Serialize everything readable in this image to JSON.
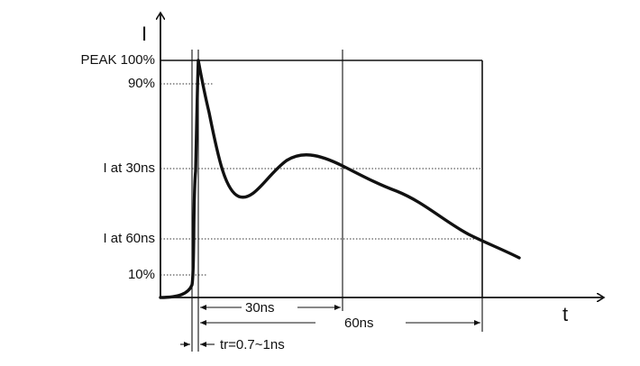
{
  "diagram": {
    "y_axis_label": "I",
    "x_axis_label": "t",
    "level_labels": {
      "peak": "PEAK 100%",
      "p90": "90%",
      "at30": "I at 30ns",
      "at60": "I at 60ns",
      "p10": "10%"
    },
    "time_labels": {
      "t30": "30ns",
      "t60": "60ns",
      "rise": "tr=0.7~1ns"
    }
  },
  "colors": {
    "ink": "#111111",
    "background": "#ffffff"
  }
}
